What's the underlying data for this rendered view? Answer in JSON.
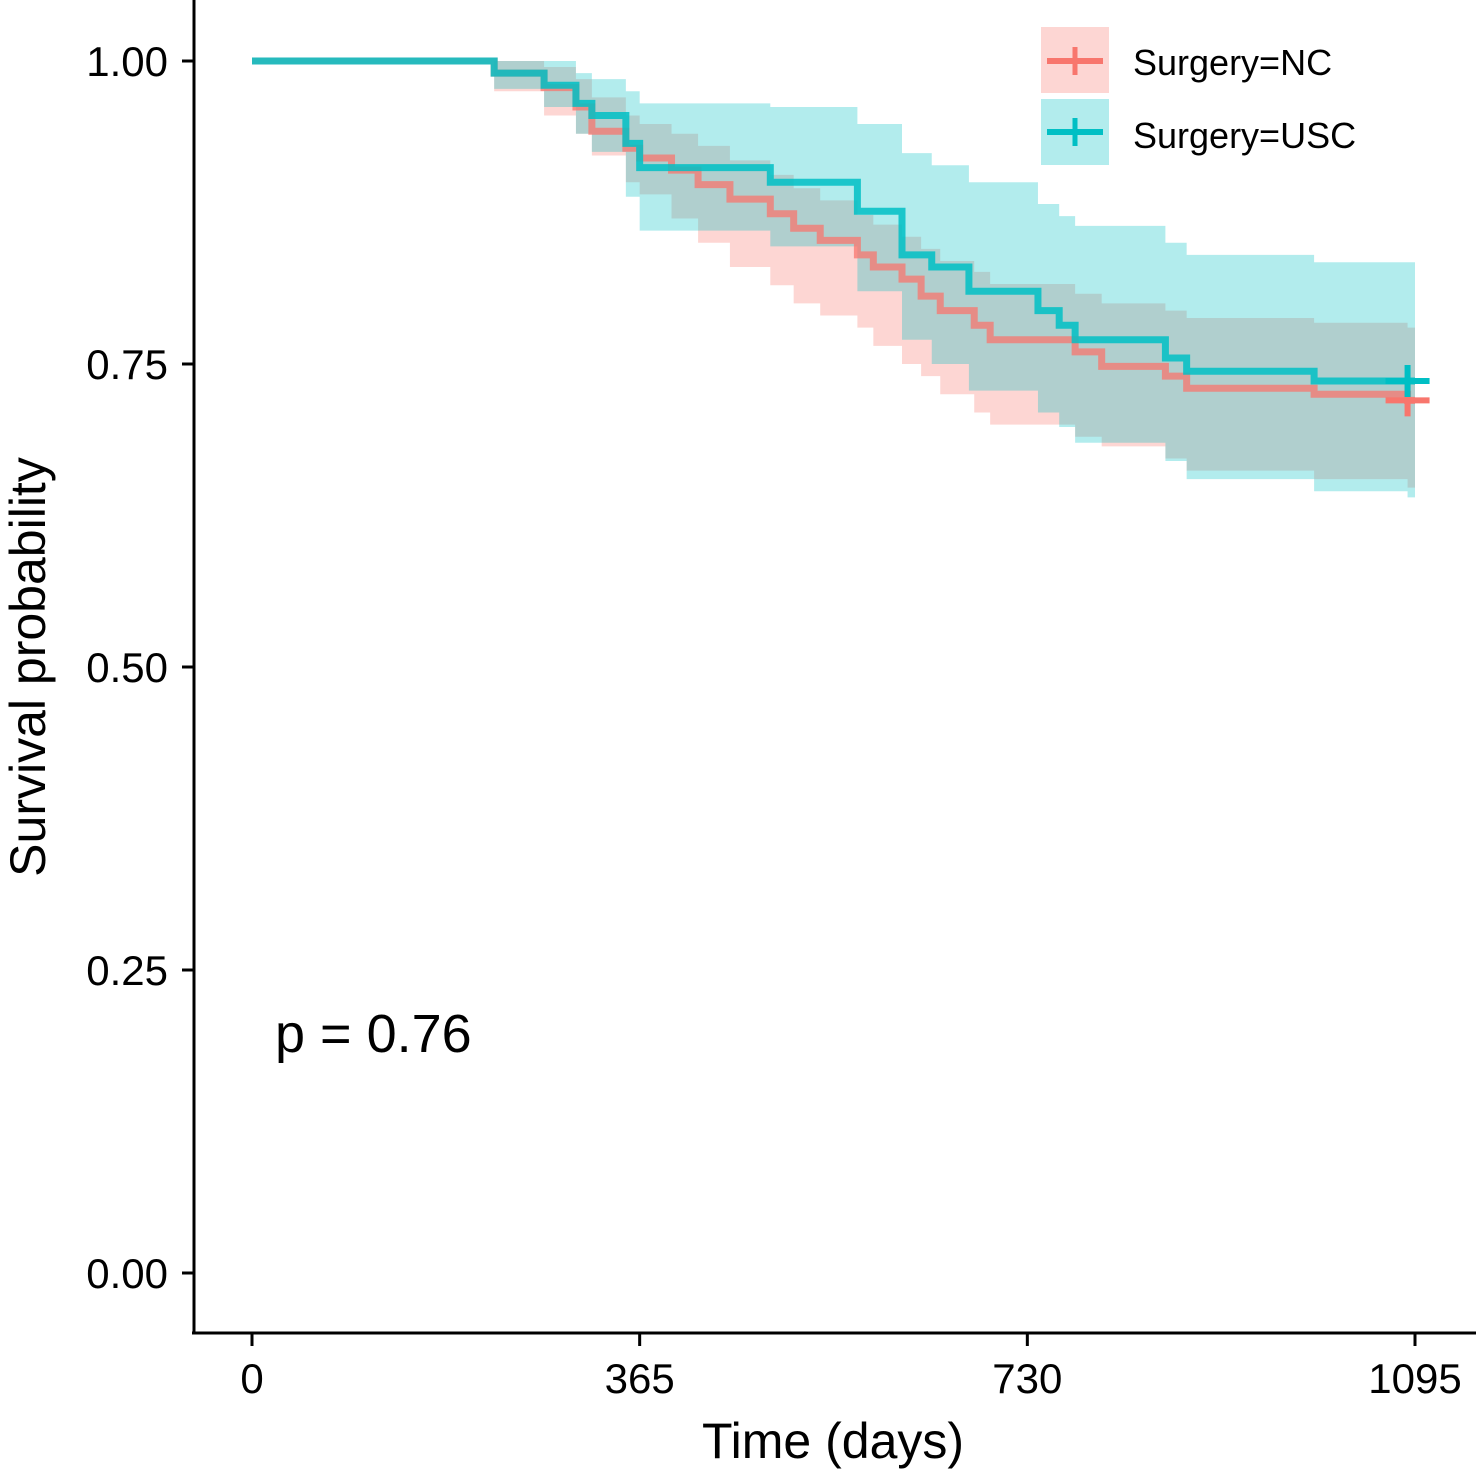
{
  "chart_data": {
    "type": "line",
    "subtype": "kaplan-meier",
    "title": "",
    "xlabel": "Time (days)",
    "ylabel": "Survival probability",
    "xlim": [
      -55,
      1145
    ],
    "ylim": [
      -0.05,
      1.05
    ],
    "xticks": [
      0,
      365,
      730,
      1095
    ],
    "xtick_labels": [
      "0",
      "365",
      "730",
      "1095"
    ],
    "yticks": [
      0.0,
      0.25,
      0.5,
      0.75,
      1.0
    ],
    "ytick_labels": [
      "0.00",
      "0.25",
      "0.50",
      "0.75",
      "1.00"
    ],
    "grid": false,
    "legend_position": "top-right",
    "annotation": "p = 0.76",
    "series": [
      {
        "name": "Surgery=NC",
        "color": "#F8766D",
        "band_color": "#F8766D",
        "step_x": [
          0,
          228,
          275,
          305,
          320,
          352,
          365,
          395,
          420,
          450,
          488,
          510,
          535,
          570,
          585,
          612,
          630,
          648,
          680,
          695,
          775,
          800,
          860,
          880,
          1000,
          1088
        ],
        "step_y": [
          1.0,
          0.99,
          0.978,
          0.962,
          0.942,
          0.928,
          0.92,
          0.91,
          0.898,
          0.886,
          0.874,
          0.862,
          0.852,
          0.84,
          0.83,
          0.82,
          0.806,
          0.794,
          0.782,
          0.77,
          0.76,
          0.748,
          0.74,
          0.73,
          0.725,
          0.72
        ],
        "lower": [
          1.0,
          0.975,
          0.955,
          0.94,
          0.922,
          0.9,
          0.89,
          0.87,
          0.85,
          0.83,
          0.815,
          0.8,
          0.79,
          0.78,
          0.765,
          0.75,
          0.74,
          0.725,
          0.71,
          0.7,
          0.69,
          0.682,
          0.672,
          0.662,
          0.655,
          0.648
        ],
        "upper": [
          1.0,
          1.0,
          0.995,
          0.985,
          0.97,
          0.955,
          0.948,
          0.94,
          0.93,
          0.918,
          0.906,
          0.895,
          0.885,
          0.873,
          0.865,
          0.855,
          0.845,
          0.835,
          0.826,
          0.816,
          0.808,
          0.8,
          0.794,
          0.788,
          0.784,
          0.78
        ],
        "censor_x": [
          1088
        ],
        "censor_y": [
          0.72
        ]
      },
      {
        "name": "Surgery=USC",
        "color": "#00BFC4",
        "band_color": "#00BFC4",
        "step_x": [
          0,
          228,
          275,
          305,
          320,
          352,
          365,
          488,
          570,
          612,
          640,
          675,
          740,
          760,
          775,
          860,
          880,
          1000,
          1088
        ],
        "step_y": [
          1.0,
          0.99,
          0.98,
          0.965,
          0.955,
          0.932,
          0.912,
          0.9,
          0.876,
          0.84,
          0.83,
          0.81,
          0.794,
          0.782,
          0.77,
          0.755,
          0.744,
          0.736,
          0.736
        ],
        "lower": [
          1.0,
          0.977,
          0.962,
          0.94,
          0.925,
          0.888,
          0.86,
          0.847,
          0.81,
          0.77,
          0.75,
          0.728,
          0.71,
          0.698,
          0.685,
          0.67,
          0.655,
          0.645,
          0.64
        ],
        "upper": [
          1.0,
          1.0,
          1.0,
          0.99,
          0.985,
          0.975,
          0.965,
          0.962,
          0.948,
          0.924,
          0.914,
          0.9,
          0.882,
          0.872,
          0.864,
          0.85,
          0.84,
          0.834,
          0.834
        ],
        "censor_x": [
          1088
        ],
        "censor_y": [
          0.736
        ]
      }
    ]
  }
}
